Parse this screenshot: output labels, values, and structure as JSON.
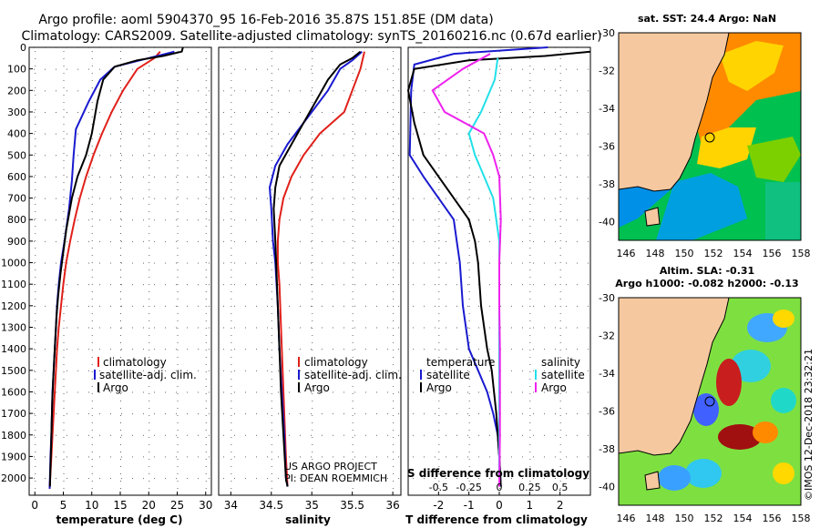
{
  "header": {
    "line1": "Argo profile: aoml 5904370_95 16-Feb-2016 35.87S 151.85E (DM data)",
    "line2": "Climatology: CARS2009. Satellite-adjusted climatology: synTS_20160216.nc (0.67d earlier)"
  },
  "colors": {
    "climatology": "#e0201a",
    "satellite": "#1a1ad0",
    "argo": "#000000",
    "sal_argo": "#ee22ee",
    "sal_sat": "#22e0e8",
    "land": "#f5c8a0",
    "grid": "#888888"
  },
  "chart_data": [
    {
      "type": "line",
      "name": "temperature-profile",
      "xlabel": "temperature (deg C)",
      "ylabel": "",
      "xlim": [
        -1,
        31
      ],
      "ylim": [
        2080,
        0
      ],
      "xticks": [
        0,
        5,
        10,
        15,
        20,
        25,
        30
      ],
      "yticks": [
        0,
        100,
        200,
        300,
        400,
        500,
        600,
        700,
        800,
        900,
        1000,
        1100,
        1200,
        1300,
        1400,
        1500,
        1600,
        1700,
        1800,
        1900,
        2000
      ],
      "legend": [
        "climatology",
        "satellite-adj. clim.",
        "Argo"
      ],
      "series": [
        {
          "name": "climatology",
          "color_key": "climatology",
          "points": [
            [
              22.0,
              20
            ],
            [
              21.0,
              50
            ],
            [
              18.0,
              100
            ],
            [
              15.5,
              200
            ],
            [
              13.5,
              300
            ],
            [
              11.8,
              400
            ],
            [
              10.3,
              500
            ],
            [
              9.0,
              600
            ],
            [
              7.9,
              700
            ],
            [
              7.0,
              800
            ],
            [
              6.2,
              900
            ],
            [
              5.5,
              1000
            ],
            [
              5.0,
              1100
            ],
            [
              4.6,
              1200
            ],
            [
              4.2,
              1300
            ],
            [
              3.9,
              1400
            ],
            [
              3.7,
              1500
            ],
            [
              3.5,
              1600
            ],
            [
              3.3,
              1700
            ],
            [
              3.1,
              1800
            ],
            [
              2.9,
              1900
            ],
            [
              2.7,
              2000
            ],
            [
              2.6,
              2050
            ]
          ]
        },
        {
          "name": "satellite-adj. clim.",
          "color_key": "satellite",
          "points": [
            [
              24.5,
              20
            ],
            [
              20.0,
              50
            ],
            [
              14.0,
              90
            ],
            [
              11.5,
              150
            ],
            [
              9.5,
              250
            ],
            [
              7.2,
              380
            ],
            [
              6.8,
              500
            ],
            [
              6.5,
              620
            ],
            [
              6.0,
              750
            ],
            [
              5.2,
              900
            ],
            [
              4.6,
              1000
            ],
            [
              4.2,
              1100
            ],
            [
              3.9,
              1200
            ],
            [
              3.7,
              1300
            ],
            [
              3.5,
              1400
            ],
            [
              3.3,
              1500
            ],
            [
              3.1,
              1600
            ],
            [
              3.0,
              1700
            ],
            [
              2.9,
              1800
            ],
            [
              2.75,
              1900
            ],
            [
              2.65,
              2000
            ],
            [
              2.6,
              2050
            ]
          ]
        },
        {
          "name": "Argo",
          "color_key": "argo",
          "points": [
            [
              26.0,
              0
            ],
            [
              25.8,
              20
            ],
            [
              22.5,
              40
            ],
            [
              18.0,
              60
            ],
            [
              14.0,
              90
            ],
            [
              12.0,
              150
            ],
            [
              11.0,
              250
            ],
            [
              10.0,
              400
            ],
            [
              9.0,
              500
            ],
            [
              7.5,
              600
            ],
            [
              6.5,
              700
            ],
            [
              5.5,
              850
            ],
            [
              5.0,
              950
            ],
            [
              4.5,
              1050
            ],
            [
              4.1,
              1150
            ],
            [
              3.8,
              1250
            ],
            [
              3.6,
              1350
            ],
            [
              3.4,
              1450
            ],
            [
              3.2,
              1550
            ],
            [
              3.05,
              1650
            ],
            [
              2.95,
              1750
            ],
            [
              2.85,
              1850
            ],
            [
              2.75,
              1950
            ],
            [
              2.65,
              2040
            ]
          ]
        }
      ]
    },
    {
      "type": "line",
      "name": "salinity-profile",
      "xlabel": "salinity",
      "ylabel": "",
      "xlim": [
        33.85,
        36.1
      ],
      "ylim": [
        2080,
        0
      ],
      "xticks": [
        34,
        34.5,
        35,
        35.5,
        36
      ],
      "xtick_labels": [
        "34",
        "34.5",
        "35",
        "35.5",
        "36"
      ],
      "legend": [
        "climatology",
        "satellite-adj. clim.",
        "Argo"
      ],
      "series": [
        {
          "name": "climatology",
          "color_key": "climatology",
          "points": [
            [
              35.65,
              20
            ],
            [
              35.6,
              100
            ],
            [
              35.5,
              200
            ],
            [
              35.4,
              300
            ],
            [
              35.1,
              400
            ],
            [
              34.9,
              500
            ],
            [
              34.75,
              600
            ],
            [
              34.65,
              700
            ],
            [
              34.6,
              800
            ],
            [
              34.58,
              900
            ],
            [
              34.58,
              1000
            ],
            [
              34.6,
              1100
            ],
            [
              34.62,
              1300
            ],
            [
              34.64,
              1500
            ],
            [
              34.66,
              1700
            ],
            [
              34.68,
              1900
            ],
            [
              34.7,
              2040
            ]
          ]
        },
        {
          "name": "satellite-adj. clim.",
          "color_key": "satellite",
          "points": [
            [
              35.62,
              20
            ],
            [
              35.5,
              60
            ],
            [
              35.35,
              100
            ],
            [
              35.2,
              200
            ],
            [
              35.0,
              300
            ],
            [
              34.7,
              450
            ],
            [
              34.55,
              550
            ],
            [
              34.48,
              650
            ],
            [
              34.5,
              750
            ],
            [
              34.52,
              900
            ],
            [
              34.55,
              1000
            ],
            [
              34.58,
              1200
            ],
            [
              34.6,
              1400
            ],
            [
              34.63,
              1600
            ],
            [
              34.66,
              1800
            ],
            [
              34.68,
              2000
            ],
            [
              34.7,
              2040
            ]
          ]
        },
        {
          "name": "Argo",
          "color_key": "argo",
          "points": [
            [
              35.6,
              20
            ],
            [
              35.5,
              50
            ],
            [
              35.35,
              80
            ],
            [
              35.2,
              150
            ],
            [
              35.05,
              250
            ],
            [
              34.9,
              350
            ],
            [
              34.75,
              450
            ],
            [
              34.6,
              550
            ],
            [
              34.55,
              650
            ],
            [
              34.53,
              750
            ],
            [
              34.55,
              900
            ],
            [
              34.56,
              1000
            ],
            [
              34.58,
              1200
            ],
            [
              34.6,
              1400
            ],
            [
              34.62,
              1600
            ],
            [
              34.65,
              1800
            ],
            [
              34.68,
              2000
            ],
            [
              34.7,
              2040
            ]
          ]
        }
      ]
    },
    {
      "type": "line",
      "name": "difference-profile",
      "xlabel": "T difference from climatology",
      "title_bottom": "S difference from climatology",
      "xlim": [
        -3.0,
        3.0
      ],
      "ylim": [
        2080,
        0
      ],
      "xticks": [
        -2,
        -1,
        0,
        1,
        2
      ],
      "xtick_labels": [
        "-2",
        "-1",
        "0",
        "1",
        "2"
      ],
      "top_xticks": [
        -0.5,
        -0.25,
        0,
        0.25,
        0.5
      ],
      "top_xtick_labels": [
        "-0.5",
        "-0.25",
        "0",
        "0.25",
        "0.5"
      ],
      "legend_left_title": "temperature",
      "legend_right_title": "salinity",
      "legend": [
        "satellite",
        "Argo",
        "satellite",
        "Argo"
      ],
      "series": [
        {
          "name": "T satellite",
          "color_key": "satellite",
          "points": [
            [
              1.6,
              0
            ],
            [
              -1.5,
              30
            ],
            [
              -2.8,
              80
            ],
            [
              -2.9,
              200
            ],
            [
              -2.95,
              500
            ],
            [
              -2.5,
              600
            ],
            [
              -2.0,
              700
            ],
            [
              -1.5,
              800
            ],
            [
              -1.4,
              900
            ],
            [
              -1.3,
              1000
            ],
            [
              -1.2,
              1200
            ],
            [
              -1.0,
              1400
            ],
            [
              -0.7,
              1500
            ],
            [
              -0.4,
              1600
            ],
            [
              -0.2,
              1700
            ],
            [
              -0.05,
              1800
            ],
            [
              0,
              1900
            ],
            [
              0.05,
              2040
            ]
          ]
        },
        {
          "name": "T Argo",
          "color_key": "argo",
          "points": [
            [
              3.0,
              20
            ],
            [
              1.5,
              40
            ],
            [
              -1.0,
              60
            ],
            [
              -2.8,
              100
            ],
            [
              -3.0,
              200
            ],
            [
              -2.8,
              350
            ],
            [
              -2.5,
              500
            ],
            [
              -2.0,
              600
            ],
            [
              -1.5,
              700
            ],
            [
              -1.0,
              800
            ],
            [
              -0.8,
              900
            ],
            [
              -0.7,
              1000
            ],
            [
              -0.6,
              1200
            ],
            [
              -0.4,
              1400
            ],
            [
              -0.25,
              1500
            ],
            [
              -0.1,
              1700
            ],
            [
              0.0,
              1900
            ],
            [
              0.05,
              2040
            ]
          ]
        },
        {
          "name": "S satellite",
          "color_key": "sal_sat",
          "points": [
            [
              -0.05,
              50
            ],
            [
              -0.15,
              150
            ],
            [
              -0.6,
              300
            ],
            [
              -1.0,
              400
            ],
            [
              -0.8,
              500
            ],
            [
              -0.5,
              600
            ],
            [
              -0.2,
              700
            ],
            [
              -0.1,
              800
            ],
            [
              0,
              900
            ],
            [
              0,
              1000
            ],
            [
              0,
              1200
            ],
            [
              0,
              1400
            ],
            [
              0,
              1600
            ],
            [
              0,
              2000
            ]
          ]
        },
        {
          "name": "S Argo",
          "color_key": "sal_argo",
          "points": [
            [
              -0.3,
              30
            ],
            [
              -1.2,
              100
            ],
            [
              -2.2,
              200
            ],
            [
              -1.8,
              300
            ],
            [
              -0.5,
              400
            ],
            [
              -0.2,
              500
            ],
            [
              0,
              600
            ],
            [
              0.05,
              800
            ],
            [
              0,
              1000
            ],
            [
              0,
              1200
            ],
            [
              0.02,
              1400
            ],
            [
              0.02,
              1800
            ],
            [
              0,
              2040
            ]
          ]
        }
      ]
    }
  ],
  "maps": {
    "sst": {
      "title": "sat. SST: 24.4 Argo: NaN",
      "yticks": [
        "-30",
        "-32",
        "-34",
        "-36",
        "-38",
        "-40"
      ],
      "xticks": [
        "146",
        "148",
        "150",
        "152",
        "154",
        "156",
        "158"
      ]
    },
    "sla": {
      "title1": "Altim. SLA: -0.31",
      "title2": "Argo h1000: -0.082 h2000: -0.13",
      "yticks": [
        "-30",
        "-32",
        "-34",
        "-36",
        "-38",
        "-40"
      ],
      "xticks": [
        "146",
        "148",
        "150",
        "152",
        "154",
        "156",
        "158"
      ]
    }
  },
  "notes": {
    "project1": "US ARGO PROJECT",
    "project2": "PI: DEAN ROEMMICH",
    "imos": "©IMOS 12-Dec-2018 23:32:21"
  }
}
